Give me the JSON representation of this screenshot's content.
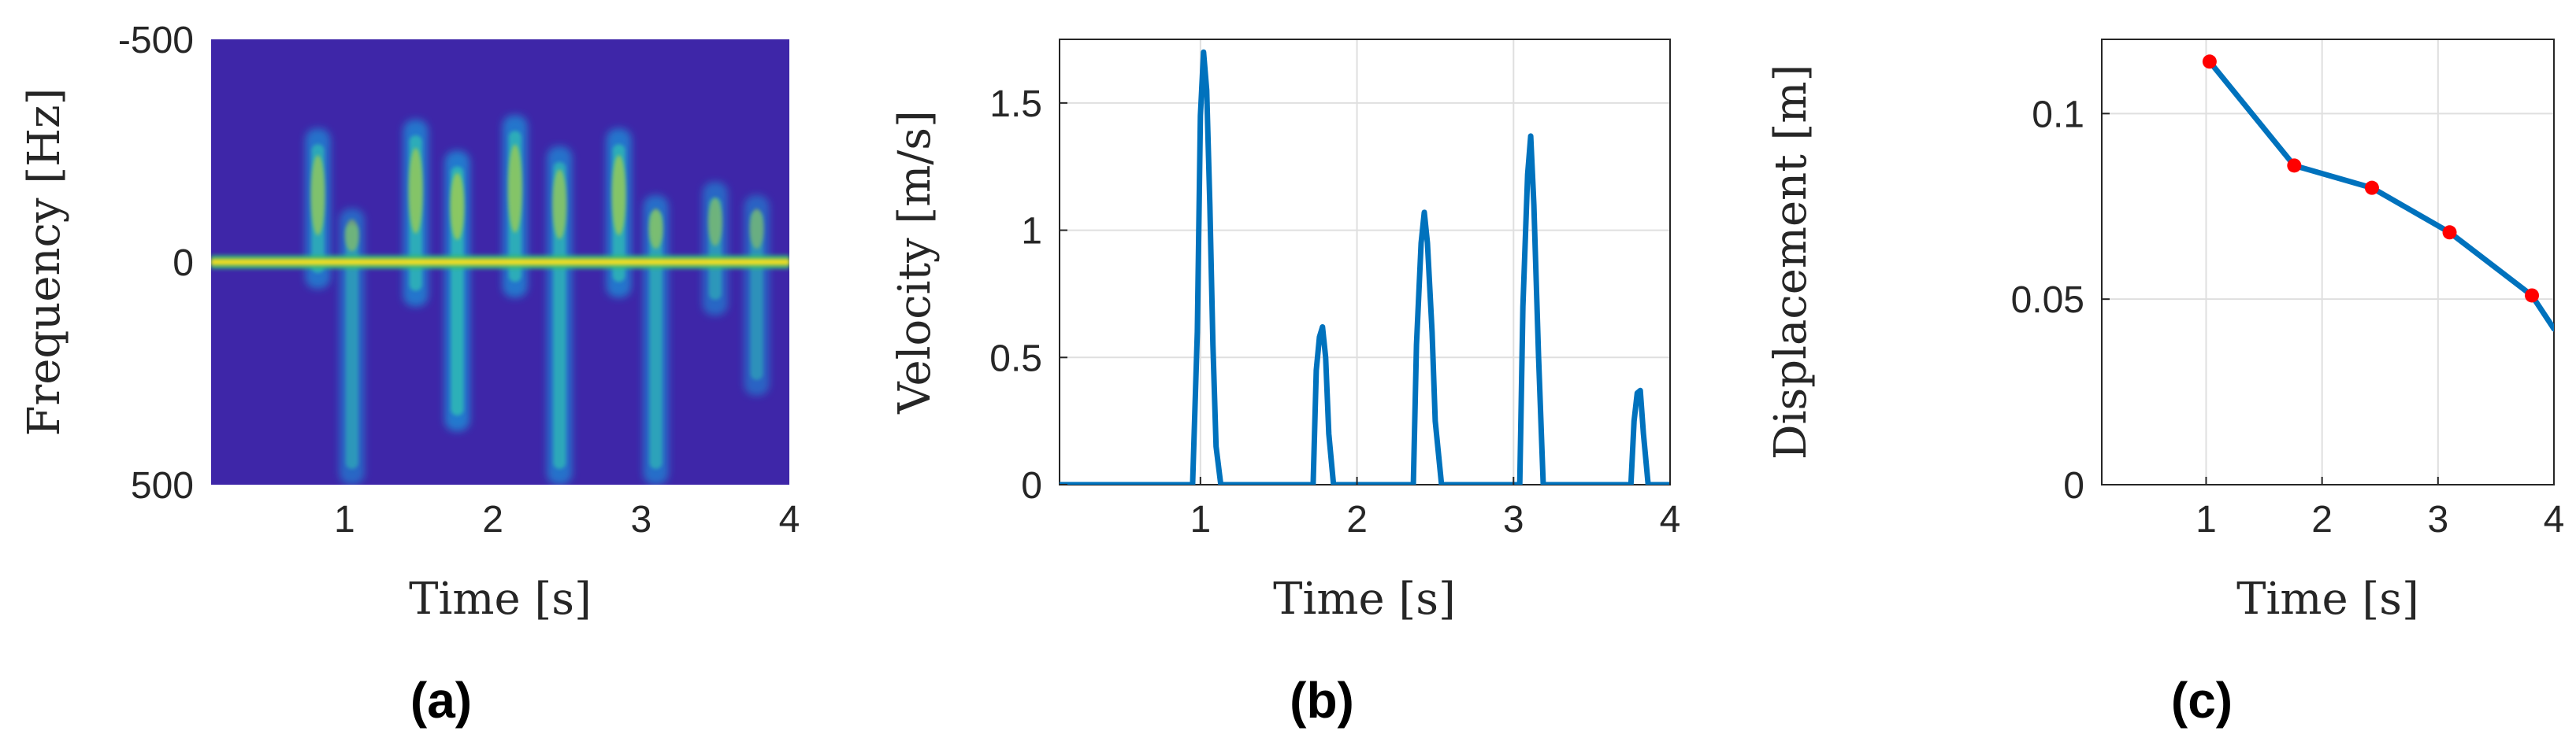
{
  "chart_data": [
    {
      "type": "heatmap",
      "panel_label": "(a)",
      "xlabel": "Time [s]",
      "ylabel": "Frequency [Hz]",
      "xlim": [
        0.1,
        4.0
      ],
      "ylim": [
        -500,
        500
      ],
      "y_reversed": true,
      "xticks": [
        1,
        2,
        3,
        4
      ],
      "yticks": [
        -500,
        0,
        500
      ],
      "colormap": "parula",
      "background_color": "#3e26a8",
      "baseline_frequency": 0,
      "bursts": [
        {
          "time": 0.82,
          "upper_extent": -300,
          "lower_extent": 60,
          "intensity": 0.75
        },
        {
          "time": 1.05,
          "upper_extent": -120,
          "lower_extent": 500,
          "intensity": 0.6
        },
        {
          "time": 1.48,
          "upper_extent": -320,
          "lower_extent": 100,
          "intensity": 0.8
        },
        {
          "time": 1.76,
          "upper_extent": -250,
          "lower_extent": 380,
          "intensity": 0.85
        },
        {
          "time": 2.15,
          "upper_extent": -330,
          "lower_extent": 80,
          "intensity": 0.8
        },
        {
          "time": 2.45,
          "upper_extent": -260,
          "lower_extent": 500,
          "intensity": 0.75
        },
        {
          "time": 2.85,
          "upper_extent": -300,
          "lower_extent": 80,
          "intensity": 0.8
        },
        {
          "time": 3.1,
          "upper_extent": -150,
          "lower_extent": 500,
          "intensity": 0.7
        },
        {
          "time": 3.5,
          "upper_extent": -180,
          "lower_extent": 120,
          "intensity": 0.6
        },
        {
          "time": 3.78,
          "upper_extent": -150,
          "lower_extent": 300,
          "intensity": 0.55
        }
      ]
    },
    {
      "type": "line",
      "panel_label": "(b)",
      "xlabel": "Time [s]",
      "ylabel": "Velocity [m/s]",
      "xlim": [
        0.1,
        4.0
      ],
      "ylim": [
        0,
        1.75
      ],
      "xticks": [
        1,
        2,
        3,
        4
      ],
      "yticks": [
        0,
        0.5,
        1,
        1.5
      ],
      "grid": true,
      "color": "#0072bd",
      "series": [
        {
          "x": [
            0.1,
            0.95,
            0.98,
            1.0,
            1.02,
            1.04,
            1.06,
            1.08,
            1.1,
            1.13,
            1.16,
            1.72,
            1.74,
            1.76,
            1.78,
            1.8,
            1.82,
            1.85,
            2.36,
            2.38,
            2.41,
            2.43,
            2.45,
            2.48,
            2.5,
            2.54,
            3.04,
            3.06,
            3.09,
            3.11,
            3.13,
            3.16,
            3.19,
            3.75,
            3.77,
            3.79,
            3.81,
            3.83,
            3.86,
            4.0
          ],
          "y": [
            0,
            0,
            0.6,
            1.45,
            1.7,
            1.55,
            1.1,
            0.55,
            0.15,
            0,
            0,
            0,
            0.45,
            0.58,
            0.62,
            0.5,
            0.2,
            0,
            0,
            0.55,
            0.95,
            1.07,
            0.95,
            0.6,
            0.25,
            0,
            0,
            0.7,
            1.22,
            1.37,
            1.1,
            0.5,
            0,
            0,
            0.25,
            0.36,
            0.37,
            0.2,
            0,
            0
          ]
        }
      ]
    },
    {
      "type": "line",
      "panel_label": "(c)",
      "xlabel": "Time [s]",
      "ylabel": "Displacement [m]",
      "xlim": [
        0.1,
        4.0
      ],
      "ylim": [
        0,
        0.12
      ],
      "xticks": [
        1,
        2,
        3,
        4
      ],
      "yticks": [
        0,
        0.05,
        0.1
      ],
      "grid": true,
      "line_color": "#0072bd",
      "marker_color": "#ff0000",
      "series": [
        {
          "x": [
            1.03,
            1.76,
            2.43,
            3.1,
            3.81,
            4.0
          ],
          "y": [
            0.114,
            0.086,
            0.08,
            0.068,
            0.051,
            0.042
          ]
        }
      ],
      "markers": {
        "x": [
          1.03,
          1.76,
          2.43,
          3.1,
          3.81
        ],
        "y": [
          0.114,
          0.086,
          0.08,
          0.068,
          0.051
        ]
      }
    }
  ]
}
